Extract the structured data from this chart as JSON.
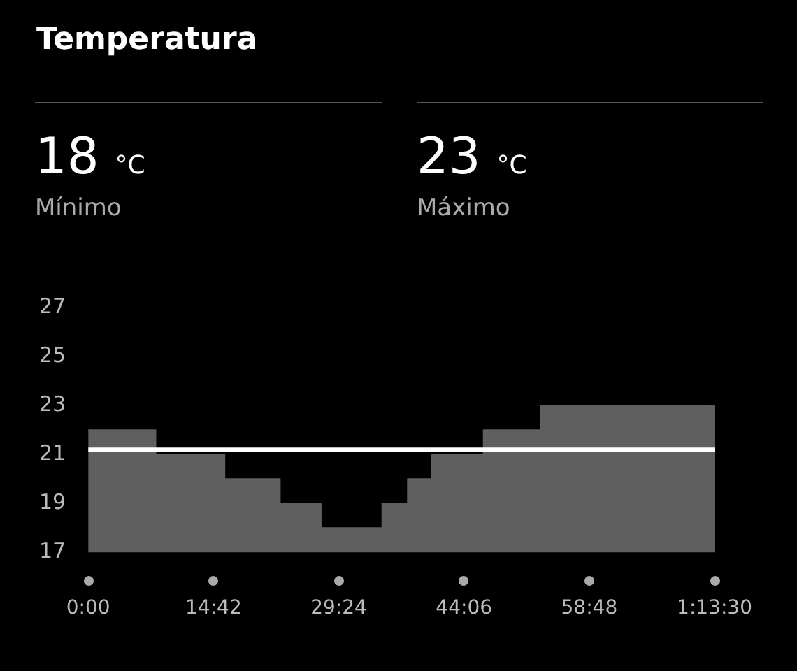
{
  "chart_data": {
    "type": "area",
    "title": "Temperatura",
    "annotations": [
      "18 °C",
      "Mínimo",
      "23 °C",
      "Máximo"
    ],
    "x": [
      0,
      7.9,
      7.9,
      16,
      16,
      22.5,
      22.5,
      27.3,
      27.3,
      34.5,
      34.5,
      37.5,
      37.5,
      40.3,
      40.3,
      46.4,
      46.4,
      53.1,
      53.1,
      73.5
    ],
    "series": [
      {
        "color": "#5f5f5f",
        "values": [
          22,
          22,
          21,
          21,
          20,
          20,
          19,
          19,
          18,
          18,
          19,
          19,
          20,
          20,
          21,
          21,
          22,
          22,
          23,
          23
        ]
      }
    ],
    "xlim": [
      0,
      73.5
    ],
    "xticks": [
      {
        "value": 0,
        "label": "0:00"
      },
      {
        "value": 14.7,
        "label": "14:42"
      },
      {
        "value": 29.4,
        "label": "29:24"
      },
      {
        "value": 44.1,
        "label": "44:06"
      },
      {
        "value": 58.8,
        "label": "58:48"
      },
      {
        "value": 73.5,
        "label": "1:13:30"
      }
    ],
    "ylim": [
      17,
      27
    ],
    "yticks": [
      17,
      19,
      21,
      23,
      25,
      27
    ],
    "ref_lines": [
      {
        "axis": "y",
        "value": 21.2,
        "color": "#ffffff"
      }
    ],
    "grid": false,
    "legend": false
  }
}
